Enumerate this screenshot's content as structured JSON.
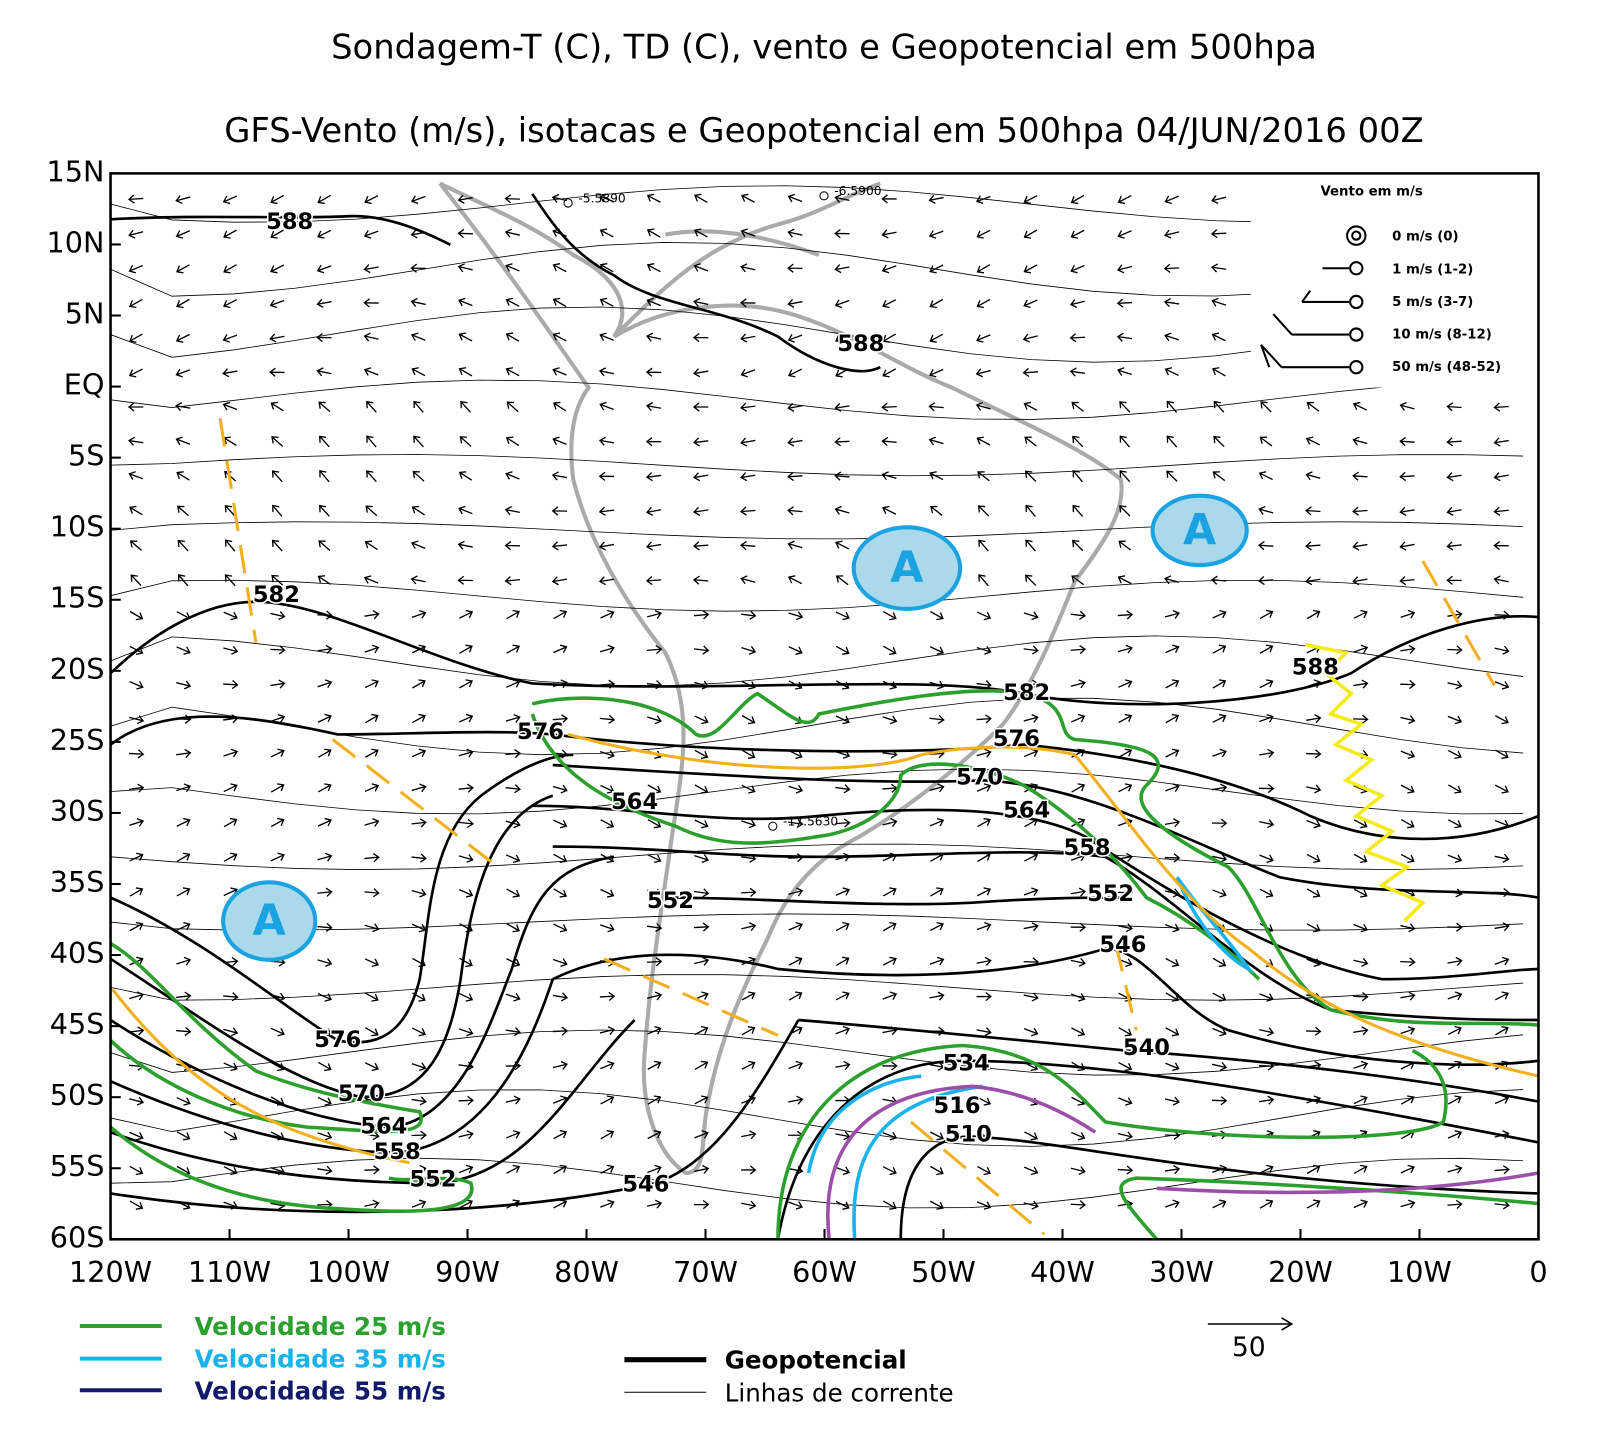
{
  "title": "Sondagem-T (C), TD (C), vento e Geopotencial em 500hpa",
  "subtitle": "GFS-Vento (m/s), isotacas e Geopotencial em 500hpa 04/JUN/2016 00Z",
  "y_axis_labels": [
    "15N",
    "10N",
    "5N",
    "EQ",
    "5S",
    "10S",
    "15S",
    "20S",
    "25S",
    "30S",
    "35S",
    "40S",
    "45S",
    "50S",
    "55S",
    "60S"
  ],
  "x_axis_labels": [
    "120W",
    "110W",
    "100W",
    "90W",
    "80W",
    "70W",
    "60W",
    "50W",
    "40W",
    "30W",
    "20W",
    "10W",
    "0"
  ],
  "contour_labels": [
    "588",
    "588",
    "582",
    "588",
    "582",
    "576",
    "576",
    "570",
    "564",
    "564",
    "558",
    "552",
    "552",
    "546",
    "540",
    "534",
    "516",
    "510",
    "576",
    "570",
    "564",
    "558",
    "552",
    "546"
  ],
  "station_labels": [
    "-5.5890",
    "-6.5900",
    "-17.5630"
  ],
  "high_pressure_labels": [
    "A",
    "A",
    "A"
  ],
  "wind_legend": {
    "title": "Vento em m/s",
    "entries": [
      "0 m/s (0)",
      "1 m/s (1-2)",
      "5 m/s (3-7)",
      "10 m/s (8-12)",
      "50 m/s (48-52)"
    ]
  },
  "reference_vector_label": "50",
  "legend": {
    "isotachs": [
      "Velocidade 25 m/s",
      "Velocidade 35 m/s",
      "Velocidade 55 m/s"
    ],
    "lines": [
      "Geopotencial",
      "Linhas de corrente"
    ]
  }
}
